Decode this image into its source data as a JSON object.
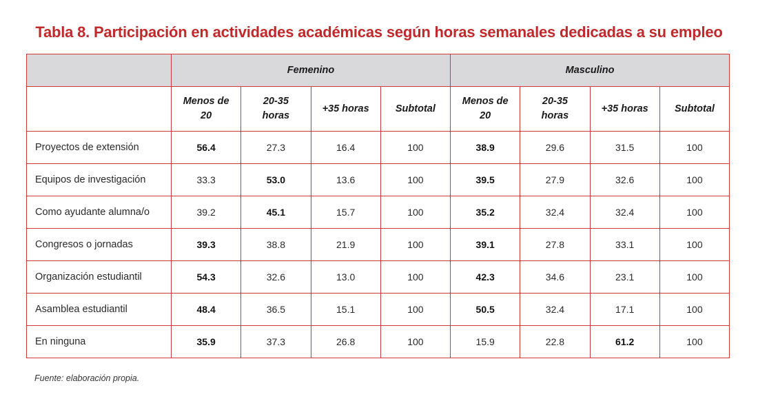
{
  "title": "Tabla 8. Participación en actividades académicas según horas semanales dedicadas a su empleo",
  "groups": [
    {
      "label": "Femenino"
    },
    {
      "label": "Masculino"
    }
  ],
  "subheaders": [
    {
      "line1": "Menos de",
      "line2": "20"
    },
    {
      "line1": "20-35",
      "line2": "horas"
    },
    {
      "line1": "+35 horas",
      "line2": ""
    },
    {
      "line1": "Subtotal",
      "line2": ""
    },
    {
      "line1": "Menos de",
      "line2": "20"
    },
    {
      "line1": "20-35",
      "line2": "horas"
    },
    {
      "line1": "+35 horas",
      "line2": ""
    },
    {
      "line1": "Subtotal",
      "line2": ""
    }
  ],
  "rows": [
    {
      "label": "Proyectos de extensión",
      "values": [
        "56.4",
        "27.3",
        "16.4",
        "100",
        "38.9",
        "29.6",
        "31.5",
        "100"
      ],
      "bold": [
        0,
        4
      ]
    },
    {
      "label": "Equipos de investigación",
      "values": [
        "33.3",
        "53.0",
        "13.6",
        "100",
        "39.5",
        "27.9",
        "32.6",
        "100"
      ],
      "bold": [
        1,
        4
      ]
    },
    {
      "label": "Como ayudante alumna/o",
      "values": [
        "39.2",
        "45.1",
        "15.7",
        "100",
        "35.2",
        "32.4",
        "32.4",
        "100"
      ],
      "bold": [
        1,
        4
      ]
    },
    {
      "label": "Congresos o jornadas",
      "values": [
        "39.3",
        "38.8",
        "21.9",
        "100",
        "39.1",
        "27.8",
        "33.1",
        "100"
      ],
      "bold": [
        0,
        4
      ]
    },
    {
      "label": "Organización estudiantil",
      "values": [
        "54.3",
        "32.6",
        "13.0",
        "100",
        "42.3",
        "34.6",
        "23.1",
        "100"
      ],
      "bold": [
        0,
        4
      ]
    },
    {
      "label": "Asamblea estudiantil",
      "values": [
        "48.4",
        "36.5",
        "15.1",
        "100",
        "50.5",
        "32.4",
        "17.1",
        "100"
      ],
      "bold": [
        0,
        4
      ]
    },
    {
      "label": "En ninguna",
      "values": [
        "35.9",
        "37.3",
        "26.8",
        "100",
        "15.9",
        "22.8",
        "61.2",
        "100"
      ],
      "bold": [
        0,
        6
      ]
    }
  ],
  "footnote": "Fuente: elaboración propia.",
  "colors": {
    "title": "#c0292b",
    "border": "#d2373a",
    "header_bg": "#d9d9db"
  }
}
